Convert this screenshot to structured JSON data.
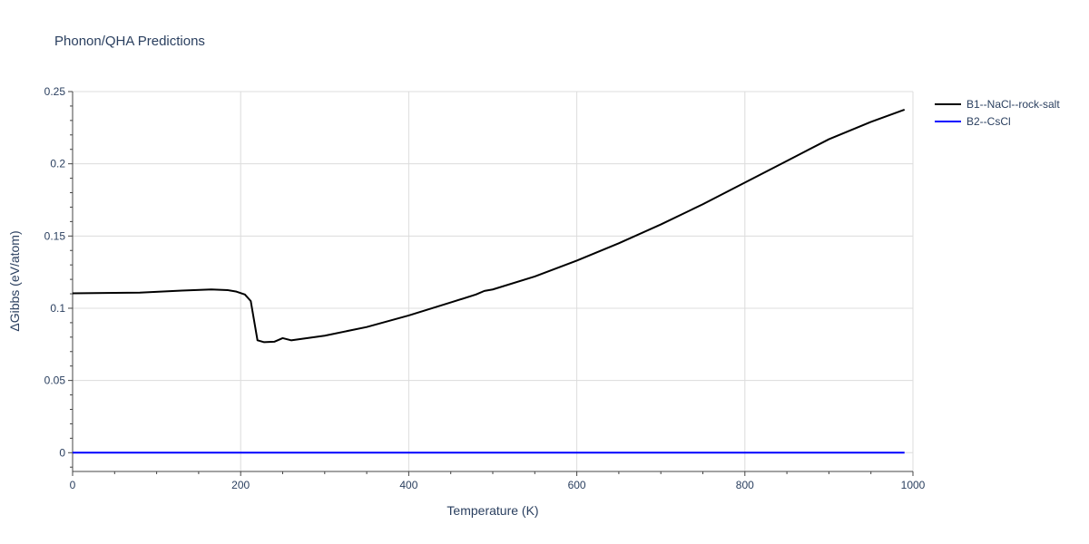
{
  "chart_data": {
    "type": "line",
    "title": "Phonon/QHA Predictions",
    "xlabel": "Temperature (K)",
    "ylabel": "ΔGibbs (eV/atom)",
    "xlim": [
      0,
      1000
    ],
    "ylim": [
      -0.013,
      0.25
    ],
    "x_ticks": [
      0,
      200,
      400,
      600,
      800,
      1000
    ],
    "x_tick_labels": [
      "0",
      "200",
      "400",
      "600",
      "800",
      "1000"
    ],
    "y_ticks": [
      0,
      0.05,
      0.1,
      0.15,
      0.2,
      0.25
    ],
    "y_tick_labels": [
      "0",
      "0.05",
      "0.1",
      "0.15",
      "0.2",
      "0.25"
    ],
    "grid": true,
    "legend_position": "top-right",
    "series": [
      {
        "name": "B1--NaCl--rock-salt",
        "color": "#000000",
        "x": [
          0,
          80,
          130,
          165,
          185,
          195,
          205,
          212,
          220,
          228,
          240,
          250,
          260,
          300,
          350,
          400,
          450,
          480,
          490,
          500,
          550,
          600,
          650,
          700,
          750,
          800,
          850,
          900,
          950,
          990
        ],
        "y": [
          0.1103,
          0.1108,
          0.1122,
          0.113,
          0.1125,
          0.1115,
          0.1095,
          0.105,
          0.0778,
          0.0765,
          0.0768,
          0.0793,
          0.0778,
          0.081,
          0.087,
          0.095,
          0.104,
          0.1095,
          0.112,
          0.113,
          0.122,
          0.133,
          0.145,
          0.158,
          0.172,
          0.187,
          0.202,
          0.217,
          0.229,
          0.2375
        ]
      },
      {
        "name": "B2--CsCl",
        "color": "#0000ff",
        "x": [
          0,
          990
        ],
        "y": [
          0,
          0
        ]
      }
    ]
  }
}
